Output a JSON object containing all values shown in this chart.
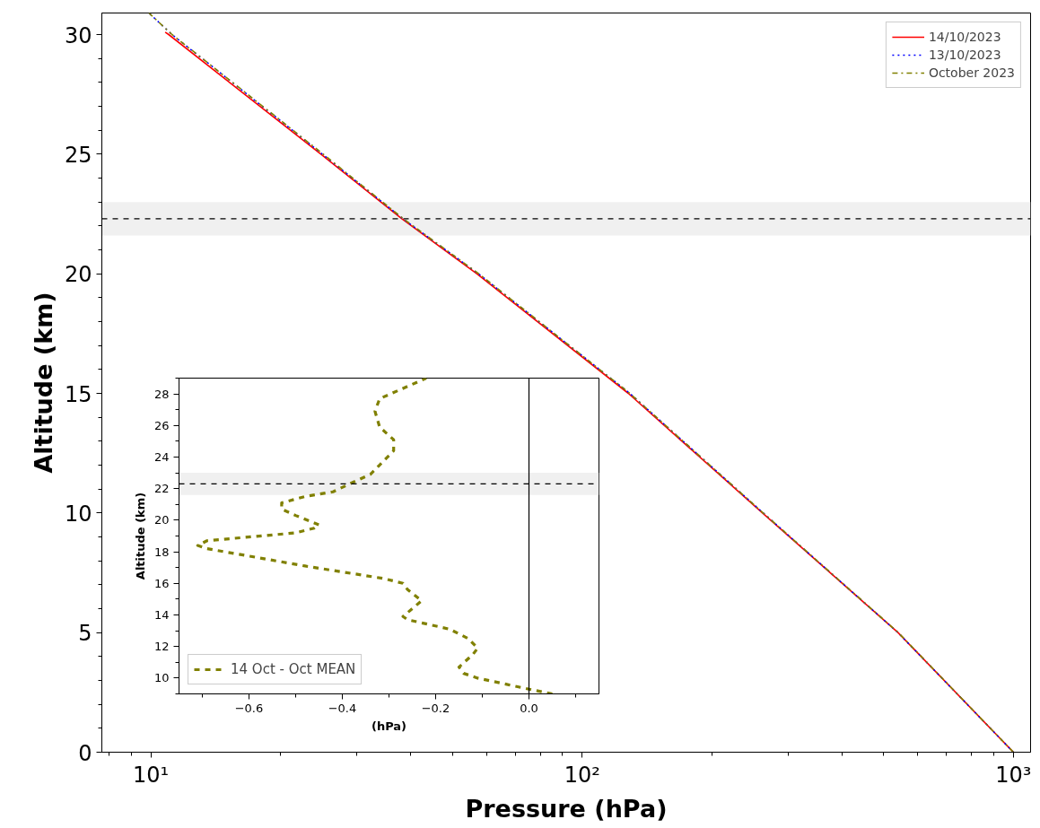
{
  "chart_data": [
    {
      "type": "line",
      "xlabel": "Pressure (hPa)",
      "ylabel": "Altitude (km)",
      "log": "x",
      "grid": false,
      "legend": "top right",
      "xlim": [
        7.7,
        1096
      ],
      "ylim": [
        0,
        30.9
      ],
      "xticks": [
        {
          "value": 10,
          "label": "10¹"
        },
        {
          "value": 100,
          "label": "10²"
        },
        {
          "value": 1000,
          "label": "10³"
        }
      ],
      "yticks": [
        0,
        5,
        10,
        15,
        20,
        25,
        30
      ],
      "series": [
        {
          "name": "14/10/2023",
          "color": "#ff0000",
          "line_style": "solid",
          "x": [
            1000,
            540,
            262,
            128,
            57,
            38.2,
            24.8,
            11.0,
            10.8
          ],
          "values": [
            0,
            5,
            10,
            15,
            20,
            22.3,
            25,
            30,
            30.1
          ]
        },
        {
          "name": "13/10/2023",
          "color": "#0000ff",
          "line_style": "dotted",
          "x": [
            1000,
            540,
            263,
            129,
            57.5,
            38.4,
            25.0,
            11.2,
            9.9
          ],
          "values": [
            0,
            5,
            10,
            15,
            20,
            22.3,
            25,
            30,
            30.9
          ]
        },
        {
          "name": "October 2023",
          "color": "#808000",
          "line_style": "dashdot",
          "x": [
            1000,
            541,
            263,
            129,
            57.6,
            38.5,
            25.1,
            11.2,
            9.9
          ],
          "values": [
            0,
            5,
            10,
            15,
            20,
            22.3,
            25,
            30,
            30.9
          ]
        }
      ],
      "ref_lines": [
        {
          "axis": "y",
          "value": 22.3,
          "color": "#000000",
          "line_style": "dashed"
        }
      ],
      "bands": [
        {
          "axis": "y",
          "from": 21.6,
          "to": 23.0,
          "color": "#f0f0f0"
        }
      ]
    },
    {
      "type": "line",
      "xlabel": "(hPa)",
      "ylabel": "Altitude (km)",
      "grid": false,
      "legend": "bottom left",
      "xlim": [
        -0.75,
        0.15
      ],
      "ylim": [
        9,
        29
      ],
      "xticks": [
        {
          "value": -0.6,
          "label": "−0.6"
        },
        {
          "value": -0.4,
          "label": "−0.4"
        },
        {
          "value": -0.2,
          "label": "−0.2"
        },
        {
          "value": 0,
          "label": "0.0"
        }
      ],
      "yticks": [
        10,
        12,
        14,
        16,
        18,
        20,
        22,
        24,
        26,
        28
      ],
      "series": [
        {
          "name": "14 Oct - Oct MEAN",
          "color": "#808000",
          "line_style": "dashed",
          "x": [
            0.05,
            0.0,
            -0.11,
            -0.14,
            -0.15,
            -0.12,
            -0.11,
            -0.13,
            -0.17,
            -0.26,
            -0.27,
            -0.25,
            -0.23,
            -0.26,
            -0.27,
            -0.31,
            -0.48,
            -0.69,
            -0.71,
            -0.69,
            -0.5,
            -0.46,
            -0.45,
            -0.5,
            -0.53,
            -0.53,
            -0.48,
            -0.42,
            -0.37,
            -0.34,
            -0.32,
            -0.29,
            -0.29,
            -0.32,
            -0.33,
            -0.32,
            -0.22
          ],
          "values": [
            9.0,
            9.3,
            10.0,
            10.3,
            10.7,
            11.5,
            11.9,
            12.5,
            13.1,
            13.7,
            13.9,
            14.4,
            14.9,
            15.6,
            16.0,
            16.3,
            17.1,
            18.2,
            18.4,
            18.7,
            19.2,
            19.5,
            19.7,
            20.3,
            20.7,
            21.1,
            21.5,
            21.8,
            22.5,
            22.9,
            23.5,
            24.4,
            25.1,
            25.9,
            26.9,
            27.7,
            29.0
          ]
        }
      ],
      "ref_lines": [
        {
          "axis": "y",
          "value": 22.3,
          "color": "#000000",
          "line_style": "dashed"
        },
        {
          "axis": "x",
          "value": 0,
          "color": "#000000",
          "line_style": "solid"
        }
      ],
      "bands": [
        {
          "axis": "y",
          "from": 21.6,
          "to": 23.0,
          "color": "#f0f0f0"
        }
      ]
    }
  ]
}
